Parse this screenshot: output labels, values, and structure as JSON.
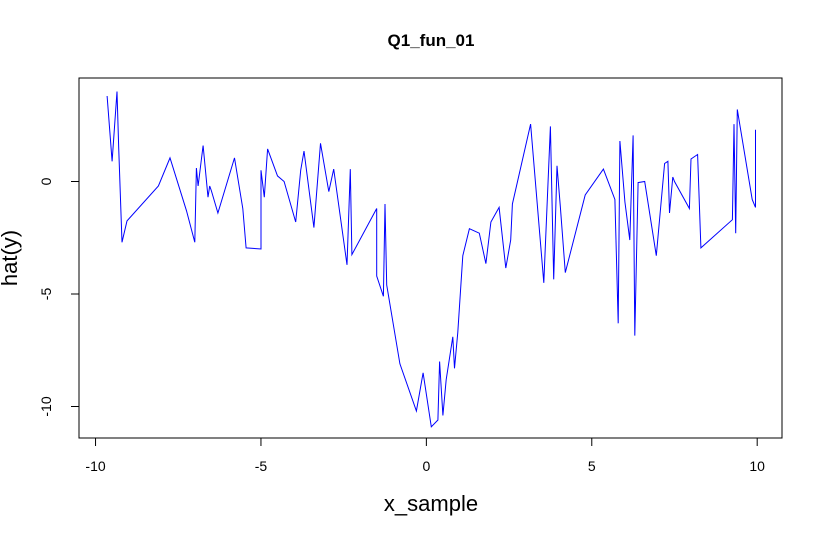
{
  "chart_data": {
    "type": "line",
    "title": "Q1_fun_01",
    "xlabel": "x_sample",
    "ylabel": "hat(y)",
    "xlim": [
      -10.5,
      10.75
    ],
    "ylim": [
      -11.4,
      4.6
    ],
    "x_ticks": [
      -10,
      -5,
      0,
      5,
      10
    ],
    "y_ticks": [
      0,
      -5,
      -10
    ],
    "x_tick_labels": [
      "-10",
      "-5",
      "0",
      "5",
      "10"
    ],
    "y_tick_labels": [
      "0",
      "-5",
      "-10"
    ],
    "grid": false,
    "line_color": "#0000ff",
    "series": [
      {
        "x": [
          -9.65,
          -9.5,
          -9.35,
          -9.3,
          -9.2,
          -9.05,
          -8.1,
          -7.75,
          -7.25,
          -7.0,
          -6.95,
          -6.9,
          -6.75,
          -6.6,
          -6.55,
          -6.5,
          -6.3,
          -5.8,
          -5.55,
          -5.45,
          -5.0,
          -5.0,
          -4.9,
          -4.8,
          -4.5,
          -4.3,
          -3.95,
          -3.8,
          -3.7,
          -3.4,
          -3.2,
          -2.95,
          -2.8,
          -2.4,
          -2.3,
          -2.25,
          -1.5,
          -1.5,
          -1.3,
          -1.25,
          -1.2,
          -0.8,
          -0.3,
          -0.1,
          0.15,
          0.35,
          0.4,
          0.5,
          0.6,
          0.8,
          0.85,
          0.95,
          1.1,
          1.3,
          1.6,
          1.8,
          1.95,
          2.2,
          2.4,
          2.55,
          2.6,
          3.15,
          3.55,
          3.75,
          3.85,
          3.95,
          4.05,
          4.2,
          4.8,
          5.35,
          5.7,
          5.8,
          5.85,
          6.0,
          6.15,
          6.25,
          6.3,
          6.4,
          6.6,
          6.95,
          7.2,
          7.3,
          7.35,
          7.45,
          7.5,
          7.95,
          8.0,
          8.2,
          8.3,
          9.25,
          9.3,
          9.35,
          9.4,
          9.85,
          9.95,
          9.95
        ],
        "y": [
          3.8,
          0.9,
          4.0,
          1.5,
          -2.7,
          -1.75,
          -0.2,
          1.05,
          -1.3,
          -2.7,
          0.6,
          -0.2,
          1.6,
          -0.7,
          -0.2,
          -0.4,
          -1.4,
          1.05,
          -1.2,
          -2.95,
          -3.0,
          0.5,
          -0.7,
          1.45,
          0.25,
          0.0,
          -1.8,
          0.5,
          1.35,
          -2.05,
          1.7,
          -0.45,
          0.55,
          -3.7,
          0.55,
          -3.25,
          -1.2,
          -4.2,
          -5.1,
          -1.0,
          -4.6,
          -8.1,
          -10.2,
          -8.5,
          -10.9,
          -10.6,
          -8.0,
          -10.4,
          -8.8,
          -6.9,
          -8.3,
          -6.7,
          -3.3,
          -2.1,
          -2.3,
          -3.65,
          -1.8,
          -1.15,
          -3.85,
          -2.6,
          -1.0,
          2.55,
          -4.5,
          2.45,
          -4.35,
          0.7,
          -1.1,
          -4.05,
          -0.6,
          0.55,
          -0.8,
          -6.3,
          1.8,
          -0.9,
          -2.6,
          2.05,
          -6.85,
          -0.05,
          0.0,
          -3.3,
          0.8,
          0.9,
          -1.4,
          0.2,
          0.0,
          -1.2,
          1.0,
          1.2,
          -2.95,
          -1.7,
          2.55,
          -2.3,
          3.2,
          -0.8,
          -1.15,
          2.3
        ]
      }
    ]
  }
}
